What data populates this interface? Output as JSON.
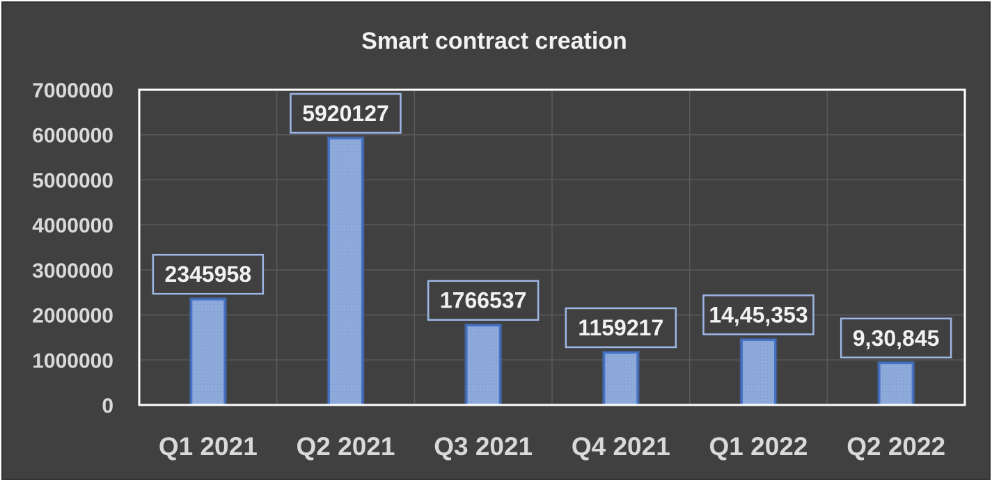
{
  "chart_data": {
    "type": "bar",
    "title": "Smart contract creation",
    "categories": [
      "Q1 2021",
      "Q2 2021",
      "Q3 2021",
      "Q4 2021",
      "Q1 2022",
      "Q2 2022"
    ],
    "values": [
      2345958,
      5920127,
      1766537,
      1159217,
      1445353,
      930845
    ],
    "data_labels": [
      "2345958",
      "5920127",
      "1766537",
      "1159217",
      "14,45,353",
      "9,30,845"
    ],
    "y_ticks": [
      "0",
      "1000000",
      "2000000",
      "3000000",
      "4000000",
      "5000000",
      "6000000",
      "7000000"
    ],
    "ylim": [
      0,
      7000000
    ],
    "grid": true,
    "legend": "none",
    "colors": {
      "background": "#404040",
      "plot_border": "#ffffff",
      "grid": "#5a5a5a",
      "bar_fill": "#8eaadb",
      "bar_edge": "#4472c4",
      "label_border": "#9db7e6",
      "text": "#d9d9d9",
      "title": "#f2f2f2"
    }
  }
}
